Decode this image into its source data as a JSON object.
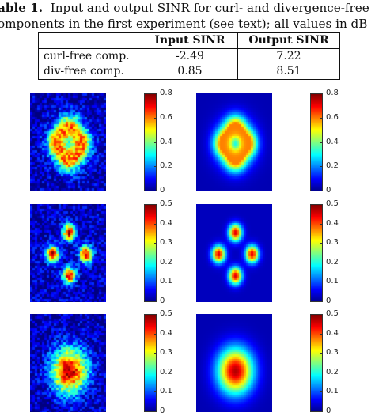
{
  "caption": {
    "label": "able 1.",
    "line1_rest": "Input and output SINR for curl- and divergence-free",
    "line2": "omponents in the first experiment (see text); all values in dB"
  },
  "table": {
    "headers": [
      "",
      "Input SINR",
      "Output SINR"
    ],
    "rows": [
      {
        "label": "curl-free comp.",
        "input": "-2.49",
        "output": "7.22"
      },
      {
        "label": "div-free comp.",
        "input": "0.85",
        "output": "8.51"
      }
    ]
  },
  "figures": [
    {
      "pattern": "cross-noisy",
      "ticks": [
        "0.8",
        "0.6",
        "0.4",
        "0.2",
        "0"
      ]
    },
    {
      "pattern": "cross-smooth",
      "ticks": [
        "0.8",
        "0.6",
        "0.4",
        "0.2",
        "0"
      ]
    },
    {
      "pattern": "spots-noisy",
      "ticks": [
        "0.5",
        "0.4",
        "0.3",
        "0.2",
        "0.1",
        "0"
      ]
    },
    {
      "pattern": "spots-smooth",
      "ticks": [
        "0.5",
        "0.4",
        "0.3",
        "0.2",
        "0.1",
        "0"
      ]
    },
    {
      "pattern": "disc-noisy",
      "ticks": [
        "0.5",
        "0.4",
        "0.3",
        "0.2",
        "0.1",
        "0"
      ]
    },
    {
      "pattern": "disc-smooth",
      "ticks": [
        "0.5",
        "0.4",
        "0.3",
        "0.2",
        "0.1",
        "0"
      ]
    }
  ],
  "colormap": "jet"
}
